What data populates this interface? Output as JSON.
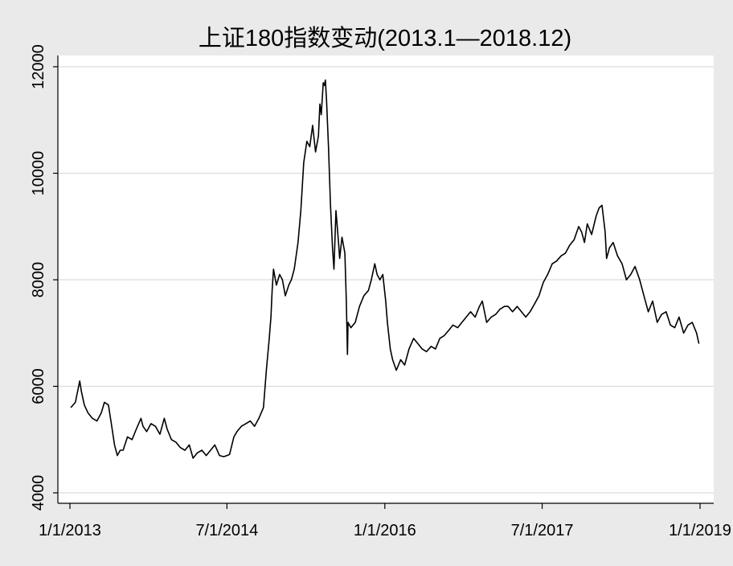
{
  "chart_data": {
    "type": "line",
    "title": "上证180指数变动(2013.1—2018.12)",
    "xlabel": "",
    "ylabel": "",
    "ylim": [
      4000,
      12000
    ],
    "xlim": [
      "2013-01-01",
      "2019-01-01"
    ],
    "y_ticks": [
      4000,
      6000,
      8000,
      10000,
      12000
    ],
    "x_ticks": [
      {
        "date": "2013-01-01",
        "label": "1/1/2013"
      },
      {
        "date": "2014-07-01",
        "label": "7/1/2014"
      },
      {
        "date": "2016-01-01",
        "label": "1/1/2016"
      },
      {
        "date": "2017-07-01",
        "label": "7/1/2017"
      },
      {
        "date": "2019-01-01",
        "label": "1/1/2019"
      }
    ],
    "grid": "horizontal",
    "colors": {
      "background": "#eaeaea",
      "plot_background": "#ffffff",
      "line": "#000000",
      "grid": "#dcdcdc"
    },
    "series": [
      {
        "x": [
          "2013-01-04",
          "2013-01-20",
          "2013-02-04",
          "2013-02-10",
          "2013-02-20",
          "2013-03-05",
          "2013-03-20",
          "2013-04-05",
          "2013-04-20",
          "2013-05-01",
          "2013-05-15",
          "2013-05-25",
          "2013-06-05",
          "2013-06-15",
          "2013-06-20",
          "2013-06-25",
          "2013-07-05",
          "2013-07-20",
          "2013-08-05",
          "2013-08-20",
          "2013-09-05",
          "2013-09-12",
          "2013-09-25",
          "2013-10-10",
          "2013-10-25",
          "2013-11-10",
          "2013-11-25",
          "2013-12-05",
          "2013-12-20",
          "2014-01-05",
          "2014-01-20",
          "2014-02-05",
          "2014-02-20",
          "2014-03-05",
          "2014-03-20",
          "2014-04-05",
          "2014-04-20",
          "2014-05-05",
          "2014-05-20",
          "2014-06-05",
          "2014-06-20",
          "2014-07-01",
          "2014-07-10",
          "2014-07-25",
          "2014-08-05",
          "2014-08-20",
          "2014-09-05",
          "2014-09-20",
          "2014-10-05",
          "2014-10-20",
          "2014-11-05",
          "2014-11-15",
          "2014-11-25",
          "2014-12-01",
          "2014-12-05",
          "2014-12-10",
          "2014-12-20",
          "2014-12-31",
          "2015-01-10",
          "2015-01-20",
          "2015-02-01",
          "2015-02-10",
          "2015-02-20",
          "2015-03-05",
          "2015-03-15",
          "2015-03-25",
          "2015-04-05",
          "2015-04-15",
          "2015-04-25",
          "2015-05-05",
          "2015-05-15",
          "2015-05-20",
          "2015-05-25",
          "2015-06-01",
          "2015-06-05",
          "2015-06-08",
          "2015-06-12",
          "2015-06-19",
          "2015-06-26",
          "2015-07-03",
          "2015-07-08",
          "2015-07-15",
          "2015-07-24",
          "2015-07-28",
          "2015-08-05",
          "2015-08-15",
          "2015-08-20",
          "2015-08-24",
          "2015-08-26",
          "2015-09-05",
          "2015-09-20",
          "2015-10-05",
          "2015-10-20",
          "2015-11-05",
          "2015-11-15",
          "2015-11-27",
          "2015-12-05",
          "2015-12-15",
          "2015-12-25",
          "2016-01-04",
          "2016-01-10",
          "2016-01-20",
          "2016-01-28",
          "2016-02-10",
          "2016-02-25",
          "2016-03-10",
          "2016-03-25",
          "2016-04-10",
          "2016-04-25",
          "2016-05-10",
          "2016-05-25",
          "2016-06-10",
          "2016-06-25",
          "2016-07-10",
          "2016-07-25",
          "2016-08-10",
          "2016-08-25",
          "2016-09-10",
          "2016-09-25",
          "2016-10-10",
          "2016-10-25",
          "2016-11-10",
          "2016-11-25",
          "2016-12-05",
          "2016-12-20",
          "2017-01-05",
          "2017-01-20",
          "2017-02-05",
          "2017-02-20",
          "2017-03-05",
          "2017-03-20",
          "2017-04-05",
          "2017-04-20",
          "2017-05-05",
          "2017-05-20",
          "2017-06-05",
          "2017-06-20",
          "2017-07-05",
          "2017-07-20",
          "2017-08-05",
          "2017-08-20",
          "2017-09-05",
          "2017-09-20",
          "2017-10-05",
          "2017-10-20",
          "2017-11-05",
          "2017-11-15",
          "2017-11-25",
          "2017-12-05",
          "2017-12-20",
          "2018-01-05",
          "2018-01-15",
          "2018-01-25",
          "2018-02-05",
          "2018-02-10",
          "2018-02-20",
          "2018-03-05",
          "2018-03-20",
          "2018-04-05",
          "2018-04-20",
          "2018-05-05",
          "2018-05-20",
          "2018-06-05",
          "2018-06-20",
          "2018-07-05",
          "2018-07-20",
          "2018-08-05",
          "2018-08-20",
          "2018-09-05",
          "2018-09-20",
          "2018-10-05",
          "2018-10-20",
          "2018-11-05",
          "2018-11-20",
          "2018-12-05",
          "2018-12-20",
          "2018-12-28"
        ],
        "y": [
          5600,
          5700,
          6100,
          5900,
          5650,
          5500,
          5400,
          5350,
          5500,
          5700,
          5650,
          5300,
          4900,
          4700,
          4750,
          4800,
          4800,
          5050,
          5000,
          5200,
          5400,
          5250,
          5150,
          5300,
          5250,
          5100,
          5400,
          5200,
          5000,
          4950,
          4850,
          4800,
          4900,
          4650,
          4750,
          4800,
          4700,
          4800,
          4900,
          4700,
          4680,
          4700,
          4720,
          5050,
          5150,
          5250,
          5300,
          5350,
          5250,
          5400,
          5600,
          6300,
          6900,
          7300,
          7800,
          8200,
          7900,
          8100,
          8000,
          7700,
          7900,
          8000,
          8200,
          8700,
          9300,
          10200,
          10600,
          10500,
          10900,
          10400,
          10700,
          11300,
          11100,
          11700,
          11650,
          11750,
          11400,
          10500,
          9400,
          8600,
          8200,
          9300,
          8700,
          8400,
          8800,
          8500,
          7600,
          6600,
          7200,
          7100,
          7200,
          7500,
          7700,
          7800,
          8000,
          8300,
          8100,
          8000,
          8100,
          7600,
          7200,
          6700,
          6500,
          6300,
          6500,
          6400,
          6700,
          6900,
          6800,
          6700,
          6650,
          6750,
          6700,
          6900,
          6950,
          7050,
          7150,
          7100,
          7200,
          7300,
          7400,
          7300,
          7500,
          7600,
          7200,
          7300,
          7350,
          7450,
          7500,
          7500,
          7400,
          7500,
          7400,
          7300,
          7400,
          7550,
          7700,
          7950,
          8100,
          8300,
          8350,
          8450,
          8500,
          8650,
          8750,
          9000,
          8900,
          8700,
          9050,
          8850,
          9200,
          9350,
          9400,
          8900,
          8400,
          8600,
          8700,
          8450,
          8300,
          8000,
          8100,
          8250,
          8000,
          7700,
          7400,
          7600,
          7200,
          7350,
          7400,
          7150,
          7100,
          7300,
          7000,
          7150,
          7200,
          7000,
          6800
        ]
      }
    ]
  }
}
